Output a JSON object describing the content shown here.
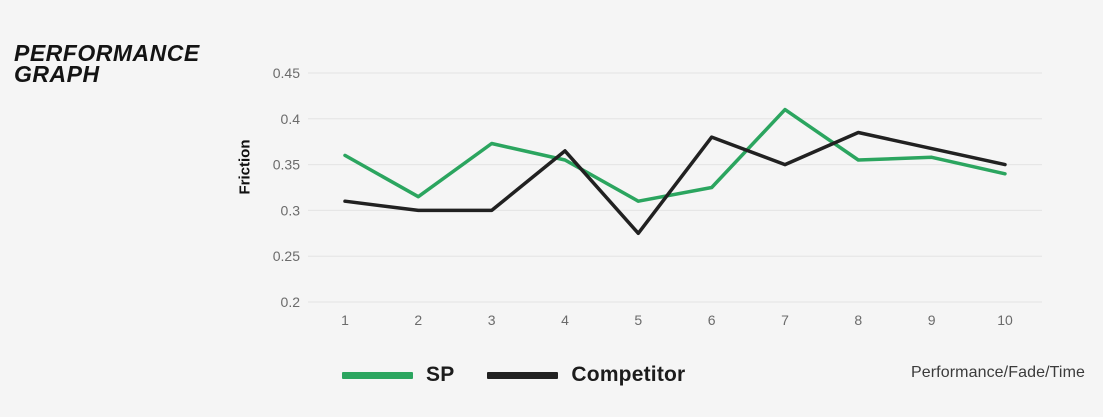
{
  "page": {
    "title_line1": "PERFORMANCE",
    "title_line2": "GRAPH",
    "footnote": "Performance/Fade/Time"
  },
  "chart_data": {
    "type": "line",
    "title": "Performance Graph",
    "xlabel": "Performance/Fade/Time",
    "ylabel": "Friction",
    "x": [
      1,
      2,
      3,
      4,
      5,
      6,
      7,
      8,
      9,
      10
    ],
    "series": [
      {
        "name": "SP",
        "color": "#2ba55f",
        "values": [
          0.36,
          0.315,
          0.373,
          0.355,
          0.31,
          0.325,
          0.41,
          0.355,
          0.358,
          0.34
        ]
      },
      {
        "name": "Competitor",
        "color": "#212121",
        "values": [
          0.31,
          0.3,
          0.3,
          0.365,
          0.275,
          0.38,
          0.35,
          0.385,
          0.3675,
          0.35
        ]
      }
    ],
    "y_ticks": [
      0.45,
      0.4,
      0.35,
      0.3,
      0.25,
      0.2
    ],
    "ylim": [
      0.2,
      0.45
    ],
    "grid": true,
    "legend_position": "bottom",
    "colors": {
      "background": "#f5f5f5",
      "gridline": "#e3e3e3",
      "tick_text": "#6b6b6b"
    }
  }
}
